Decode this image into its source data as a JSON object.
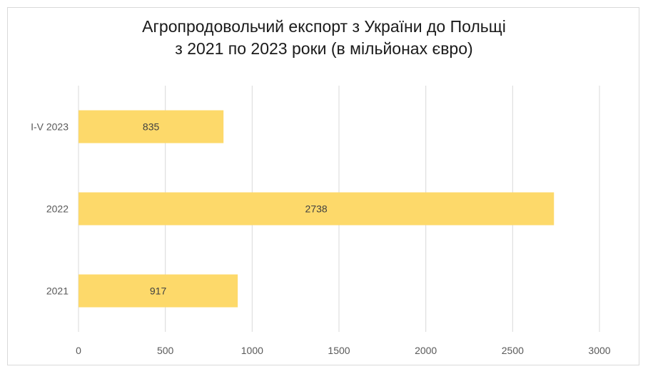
{
  "chart_data": {
    "type": "bar",
    "orientation": "horizontal",
    "title_line1": "Агропродовольчий експорт з України до Польщі",
    "title_line2": "з 2021 по 2023 роки (в мільйонах євро)",
    "categories": [
      "I-V 2023",
      "2022",
      "2021"
    ],
    "values": [
      835,
      2738,
      917
    ],
    "xlim": [
      0,
      3000
    ],
    "xticks": [
      "0",
      "500",
      "1000",
      "1500",
      "2000",
      "2500",
      "3000"
    ],
    "grid": "vertical",
    "legend": "none",
    "bar_color": "#fdd96a"
  }
}
